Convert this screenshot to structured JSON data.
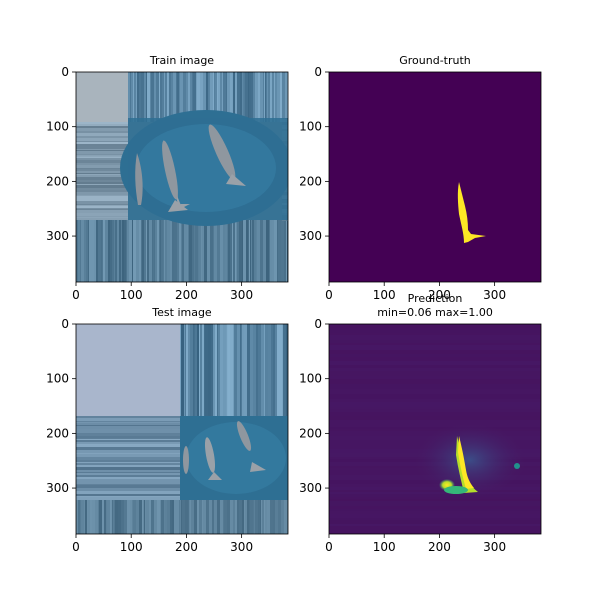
{
  "chart_data": [
    {
      "type": "image",
      "title": "Train image",
      "content": "aerial ocean photo with three whales, edge-replicated padding",
      "xticks": [
        "0",
        "100",
        "200",
        "300"
      ],
      "yticks": [
        "0",
        "100",
        "200",
        "300"
      ],
      "xlim": [
        0,
        384
      ],
      "ylim": [
        384,
        0
      ],
      "colors": {
        "padding": "#a9b4bd",
        "water": "#2e6f93",
        "whale": "#8d949c"
      }
    },
    {
      "type": "heatmap",
      "title": "Ground-truth",
      "colormap": "viridis",
      "content": "binary mask of one whale",
      "xticks": [
        "0",
        "100",
        "200",
        "300"
      ],
      "yticks": [
        "0",
        "100",
        "200",
        "300"
      ],
      "xlim": [
        0,
        384
      ],
      "ylim": [
        384,
        0
      ],
      "colors": {
        "background": "#440154",
        "mask": "#fde725"
      }
    },
    {
      "type": "image",
      "title": "Test image",
      "content": "aerial ocean photo with whales placed in lower-right, edge-replicated padding",
      "xticks": [
        "0",
        "100",
        "200",
        "300"
      ],
      "yticks": [
        "0",
        "100",
        "200",
        "300"
      ],
      "xlim": [
        0,
        384
      ],
      "ylim": [
        384,
        0
      ],
      "colors": {
        "padding": "#a9b6cc",
        "water": "#2e6f93",
        "whale": "#8d949c"
      }
    },
    {
      "type": "heatmap",
      "title": "Prediction",
      "subtitle": "min=0.06 max=1.00",
      "colormap": "viridis",
      "min": 0.06,
      "max": 1.0,
      "xticks": [
        "0",
        "100",
        "200",
        "300"
      ],
      "yticks": [
        "0",
        "100",
        "200",
        "300"
      ],
      "xlim": [
        0,
        384
      ],
      "ylim": [
        384,
        0
      ],
      "colors": {
        "background": "#46145f",
        "low": "#3b528b",
        "mid": "#21918c",
        "high": "#fde725"
      }
    }
  ]
}
